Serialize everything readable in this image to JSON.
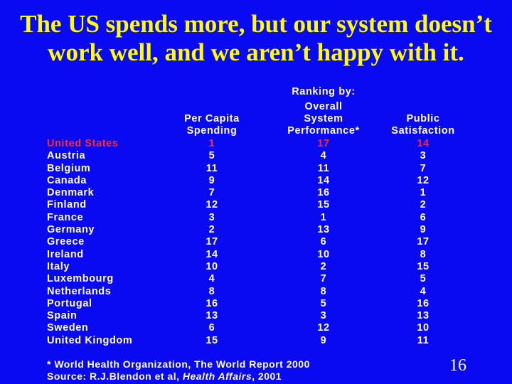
{
  "title": {
    "line1": "The US spends more, but our system doesn’t",
    "line2": "work well, and we aren’t happy with it."
  },
  "table": {
    "ranking_label": "Ranking by:",
    "headers": {
      "spending": [
        "Per Capita",
        "Spending"
      ],
      "performance": [
        "Overall",
        "System",
        "Performance*"
      ],
      "satisfaction": [
        "Public",
        "Satisfaction"
      ]
    },
    "rows": [
      {
        "country": "United States",
        "spending": "1",
        "performance": "17",
        "satisfaction": "14"
      },
      {
        "country": "Austria",
        "spending": "5",
        "performance": "4",
        "satisfaction": "3"
      },
      {
        "country": "Belgium",
        "spending": "11",
        "performance": "11",
        "satisfaction": "7"
      },
      {
        "country": "Canada",
        "spending": "9",
        "performance": "14",
        "satisfaction": "12"
      },
      {
        "country": "Denmark",
        "spending": "7",
        "performance": "16",
        "satisfaction": "1"
      },
      {
        "country": "Finland",
        "spending": "12",
        "performance": "15",
        "satisfaction": "2"
      },
      {
        "country": "France",
        "spending": "3",
        "performance": "1",
        "satisfaction": "6"
      },
      {
        "country": "Germany",
        "spending": "2",
        "performance": "13",
        "satisfaction": "9"
      },
      {
        "country": "Greece",
        "spending": "17",
        "performance": "6",
        "satisfaction": "17"
      },
      {
        "country": "Ireland",
        "spending": "14",
        "performance": "10",
        "satisfaction": "8"
      },
      {
        "country": "Italy",
        "spending": "10",
        "performance": "2",
        "satisfaction": "15"
      },
      {
        "country": "Luxembourg",
        "spending": "4",
        "performance": "7",
        "satisfaction": "5"
      },
      {
        "country": "Netherlands",
        "spending": "8",
        "performance": "8",
        "satisfaction": "4"
      },
      {
        "country": "Portugal",
        "spending": "16",
        "performance": "5",
        "satisfaction": "16"
      },
      {
        "country": "Spain",
        "spending": "13",
        "performance": "3",
        "satisfaction": "13"
      },
      {
        "country": "Sweden",
        "spending": "6",
        "performance": "12",
        "satisfaction": "10"
      },
      {
        "country": "United Kingdom",
        "spending": "15",
        "performance": "9",
        "satisfaction": "11"
      }
    ]
  },
  "footnote": {
    "line1": "* World Health Organization, The World Report 2000",
    "source_prefix": "Source: R.J.Blendon et al, ",
    "source_journal": "Health Affairs",
    "source_year": ", 2001"
  },
  "page_number": "16",
  "colors": {
    "background": "#0a0af2",
    "title": "#ffff00",
    "text": "#ffffff",
    "highlight": "#ff2a2a"
  }
}
